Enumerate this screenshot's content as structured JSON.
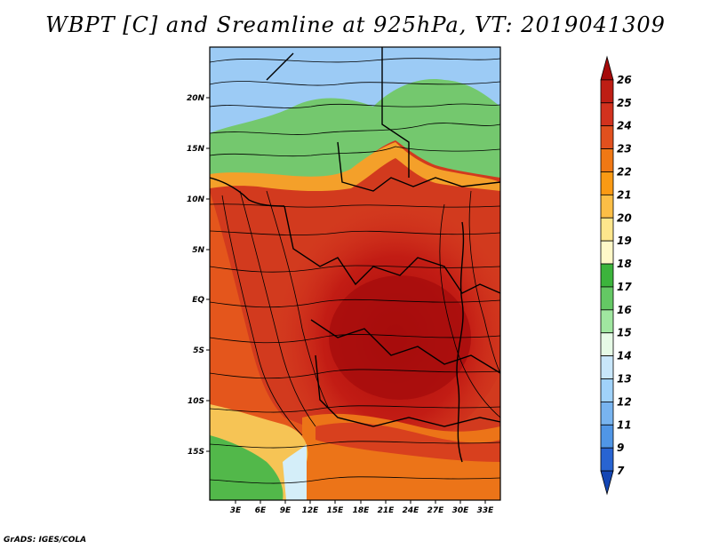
{
  "title": "WBPT [C] and Sreamline at 925hPa, VT: 2019041309",
  "footer": "GrADS: IGES/COLA",
  "y_axis_labels": [
    "20N",
    "15N",
    "10N",
    "5N",
    "EQ",
    "5S",
    "10S",
    "15S"
  ],
  "x_axis_labels": [
    "3E",
    "6E",
    "9E",
    "12E",
    "15E",
    "18E",
    "21E",
    "24E",
    "27E",
    "30E",
    "33E"
  ],
  "colorbar": {
    "labels": [
      "26",
      "25",
      "24",
      "23",
      "22",
      "21",
      "20",
      "19",
      "18",
      "17",
      "16",
      "15",
      "14",
      "13",
      "12",
      "11",
      "9",
      "7"
    ],
    "colors": [
      "#a50a0a",
      "#be1e14",
      "#d2321e",
      "#e1501e",
      "#f07814",
      "#fa9a14",
      "#fcbe46",
      "#fee68c",
      "#fff8c8",
      "#3cb43c",
      "#64c864",
      "#a0e6a0",
      "#e6fae6",
      "#c8e6fa",
      "#a0d2fa",
      "#78b4f0",
      "#5096e6",
      "#2864d2",
      "#1446b4"
    ]
  }
}
